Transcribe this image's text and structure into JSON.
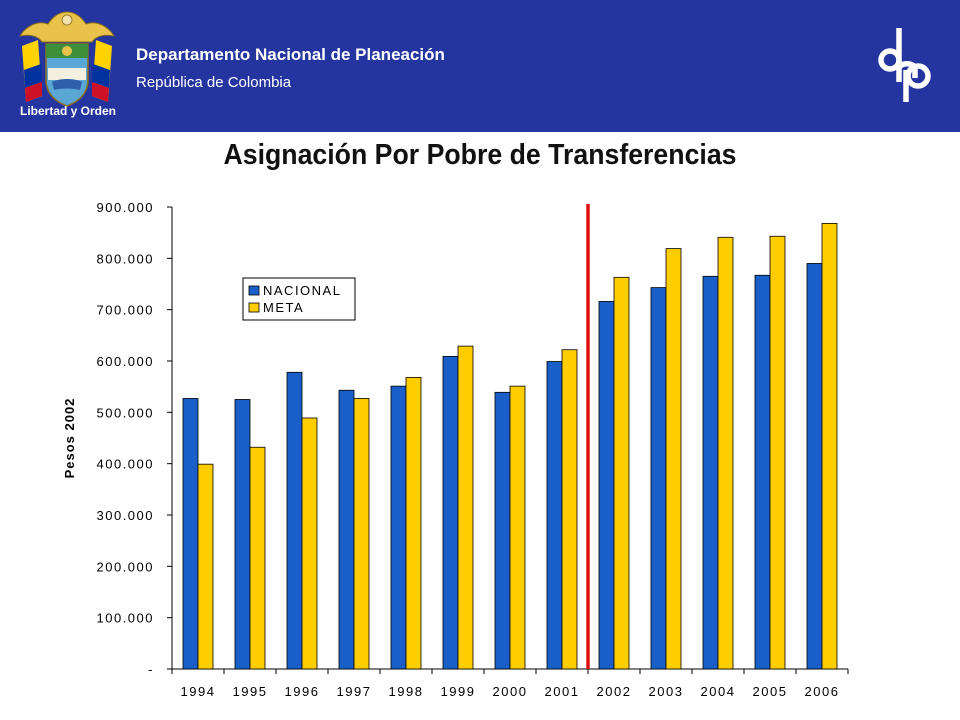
{
  "header": {
    "org_name": "Departamento Nacional de Planeación",
    "org_subtitle": "República de Colombia",
    "crest_motto": "Libertad y Orden",
    "logo_text": "dnp",
    "background_color": "#2535a0"
  },
  "chart_data": {
    "type": "bar",
    "title": "Asignación Por Pobre de Transferencias",
    "xlabel": "",
    "ylabel": "Pesos 2002",
    "categories": [
      "1994",
      "1995",
      "1996",
      "1997",
      "1998",
      "1999",
      "2000",
      "2001",
      "2002",
      "2003",
      "2004",
      "2005",
      "2006"
    ],
    "series": [
      {
        "name": "NACIONAL",
        "color": "#1a5fc8",
        "values": [
          527000,
          525000,
          578000,
          543000,
          551000,
          609000,
          539000,
          599000,
          716000,
          743000,
          765000,
          767000,
          790000
        ]
      },
      {
        "name": "META",
        "color": "#ffcc00",
        "values": [
          399000,
          432000,
          489000,
          527000,
          568000,
          629000,
          551000,
          622000,
          763000,
          819000,
          841000,
          843000,
          868000
        ]
      }
    ],
    "ylim": [
      0,
      900000
    ],
    "yticks": [
      0,
      100000,
      200000,
      300000,
      400000,
      500000,
      600000,
      700000,
      800000,
      900000
    ],
    "ytick_labels": [
      "-",
      "100.000",
      "200.000",
      "300.000",
      "400.000",
      "500.000",
      "600.000",
      "700.000",
      "800.000",
      "900.000"
    ],
    "grid": false,
    "legend_position": "top-left",
    "annotations": [
      {
        "type": "vertical-line",
        "between": [
          "2001",
          "2002"
        ],
        "color": "#e01010"
      }
    ]
  }
}
